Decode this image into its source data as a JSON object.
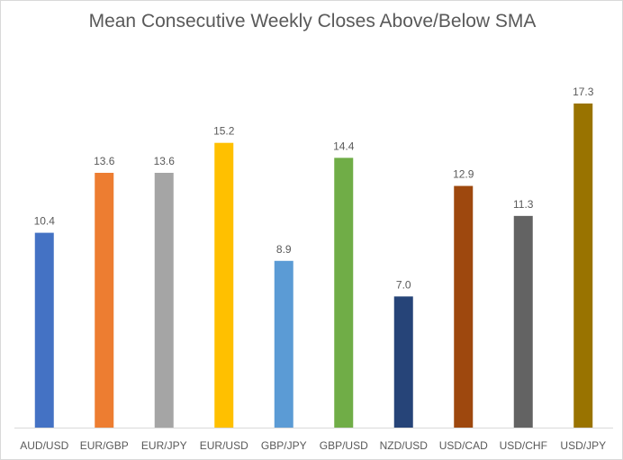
{
  "chart_data": {
    "type": "bar",
    "title": "Mean Consecutive Weekly Closes Above/Below SMA",
    "xlabel": "",
    "ylabel": "",
    "ylim": [
      0,
      18
    ],
    "grid": false,
    "legend": "none",
    "categories": [
      "AUD/USD",
      "EUR/GBP",
      "EUR/JPY",
      "EUR/USD",
      "GBP/JPY",
      "GBP/USD",
      "NZD/USD",
      "USD/CAD",
      "USD/CHF",
      "USD/JPY"
    ],
    "values": [
      10.4,
      13.6,
      13.6,
      15.2,
      8.9,
      14.4,
      7.0,
      12.9,
      11.3,
      17.3
    ],
    "value_labels": [
      "10.4",
      "13.6",
      "13.6",
      "15.2",
      "8.9",
      "14.4",
      "7.0",
      "12.9",
      "11.3",
      "17.3"
    ],
    "colors": [
      "#4472C4",
      "#ED7D31",
      "#A5A5A5",
      "#FFC000",
      "#5B9BD5",
      "#70AD47",
      "#264478",
      "#9E480E",
      "#636363",
      "#997300"
    ],
    "axis_color": "#d9d9d9",
    "text_color": "#595959"
  }
}
